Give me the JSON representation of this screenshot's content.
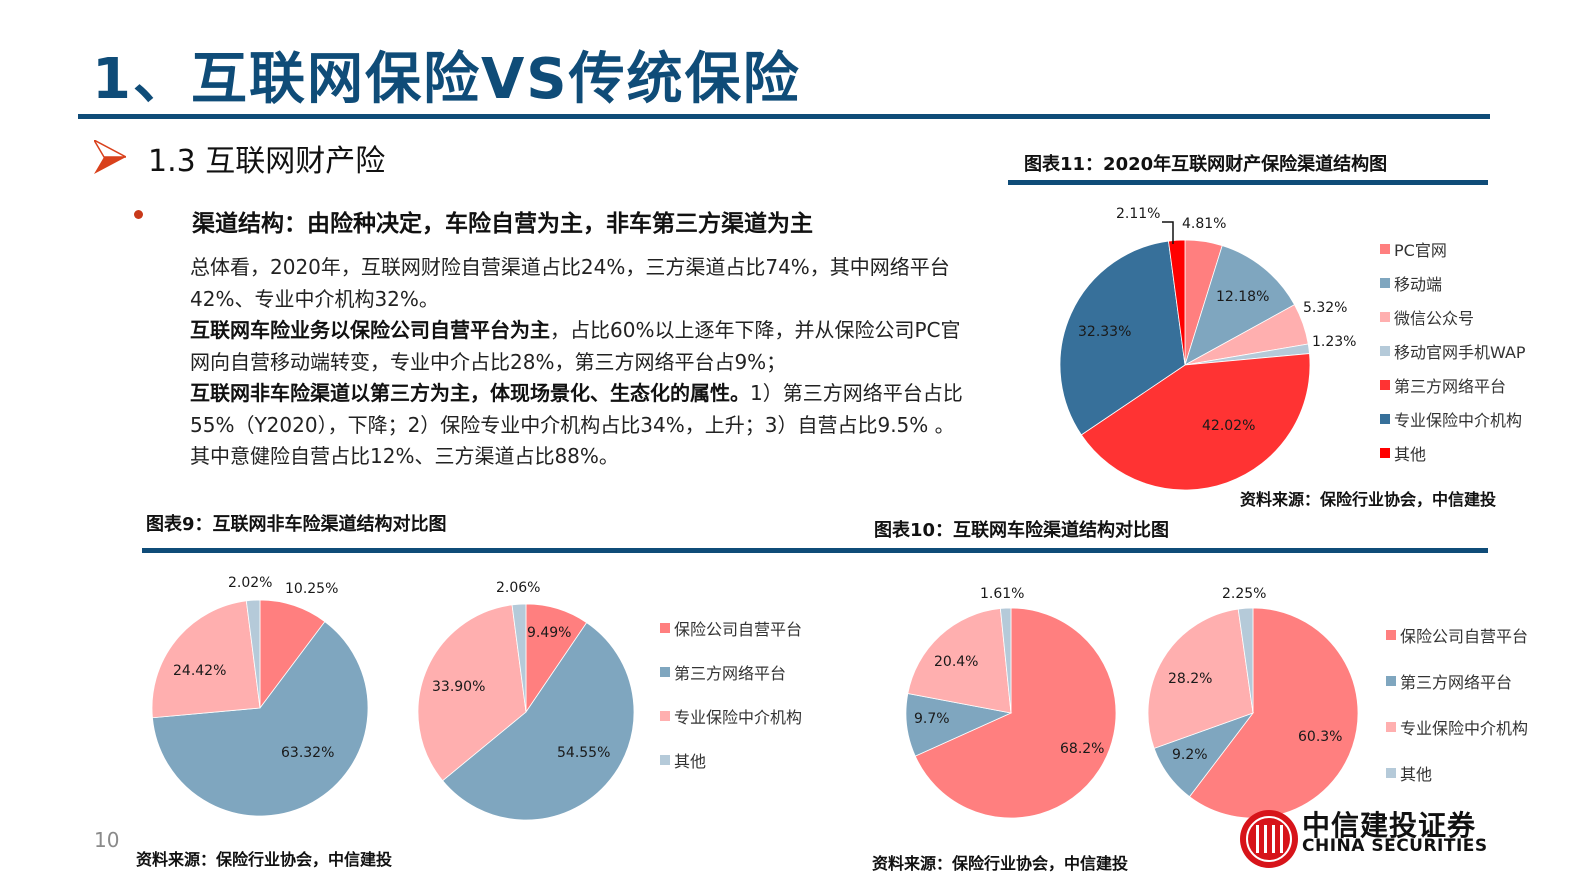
{
  "page": {
    "title": "1、互联网保险VS传统保险",
    "section": "1.3  互联网财产险",
    "page_number": "10"
  },
  "content": {
    "bullet_heading": "渠道结构：由险种决定，车险自营为主，非车第三方渠道为主",
    "paragraphs": [
      {
        "bold": "",
        "text": "总体看，2020年，互联网财险自营渠道占比24%，三方渠道占比74%，其中网络平台42%、专业中介机构32%。"
      },
      {
        "bold": "互联网车险业务以保险公司自营平台为主",
        "text": "，占比60%以上逐年下降，并从保险公司PC官网向自营移动端转变，专业中介占比28%，第三方网络平台占9%；"
      },
      {
        "bold": "互联网非车险渠道以第三方为主，体现场景化、生态化的属性。",
        "text": "1）第三方网络平台占比55%（Y2020），下降；2）保险专业中介机构占比34%，上升；3）自营占比9.5% 。其中意健险自营占比12%、三方渠道占比88%。"
      }
    ]
  },
  "figures": {
    "fig11": {
      "title": "图表11：2020年互联网财产保险渠道结构图",
      "source": "资料来源：保险行业协会，中信建投"
    },
    "fig9": {
      "title": "图表9：互联网非车险渠道结构对比图",
      "source": "资料来源：保险行业协会，中信建投"
    },
    "fig10": {
      "title": "图表10：互联网车险渠道结构对比图",
      "source": "资料来源：保险行业协会，中信建投"
    }
  },
  "logo": {
    "cn": "中信建投证券",
    "en": "CHINA SECURITIES"
  },
  "colors": {
    "brand_blue": "#0f4c78",
    "pc": "#ff7f7f",
    "mobile": "#7fa6bf",
    "wechat": "#ffafaf",
    "wap": "#b5cad9",
    "third_party": "#ff3333",
    "broker": "#37709a",
    "other_red": "#ff0000"
  },
  "chart_data": [
    {
      "id": "fig11",
      "type": "pie",
      "title": "图表11：2020年互联网财产保险渠道结构图",
      "categories": [
        "PC官网",
        "移动端",
        "微信公众号",
        "移动官网手机WAP",
        "第三方网络平台",
        "专业保险中介机构",
        "其他"
      ],
      "values": [
        4.81,
        12.18,
        5.32,
        1.23,
        42.02,
        32.33,
        2.11
      ],
      "labels": [
        "4.81%",
        "12.18%",
        "5.32%",
        "1.23%",
        "42.02%",
        "32.33%",
        "2.11%"
      ],
      "colors": [
        "#ff7f7f",
        "#7fa6bf",
        "#ffafaf",
        "#b5cad9",
        "#ff3333",
        "#37709a",
        "#ff0000"
      ],
      "legend_position": "right"
    },
    {
      "id": "fig9",
      "type": "pie",
      "title": "图表9：互联网非车险渠道结构对比图",
      "categories": [
        "保险公司自营平台",
        "第三方网络平台",
        "专业保险中介机构",
        "其他"
      ],
      "series": [
        {
          "name": "pie-1",
          "values": [
            10.25,
            63.32,
            24.42,
            2.02
          ],
          "labels": [
            "10.25%",
            "63.32%",
            "24.42%",
            "2.02%"
          ]
        },
        {
          "name": "pie-2",
          "values": [
            9.49,
            54.55,
            33.9,
            2.06
          ],
          "labels": [
            "9.49%",
            "54.55%",
            "33.90%",
            "2.06%"
          ]
        }
      ],
      "colors": [
        "#ff7f7f",
        "#7fa6bf",
        "#ffafaf",
        "#b5cad9"
      ],
      "legend_position": "right"
    },
    {
      "id": "fig10",
      "type": "pie",
      "title": "图表10：互联网车险渠道结构对比图",
      "categories": [
        "保险公司自营平台",
        "第三方网络平台",
        "专业保险中介机构",
        "其他"
      ],
      "series": [
        {
          "name": "pie-1",
          "values": [
            68.2,
            9.7,
            20.4,
            1.61
          ],
          "labels": [
            "68.2%",
            "9.7%",
            "20.4%",
            "1.61%"
          ]
        },
        {
          "name": "pie-2",
          "values": [
            60.3,
            9.2,
            28.2,
            2.25
          ],
          "labels": [
            "60.3%",
            "9.2%",
            "28.2%",
            "2.25%"
          ]
        }
      ],
      "colors": [
        "#ff7f7f",
        "#7fa6bf",
        "#ffafaf",
        "#b5cad9"
      ],
      "legend_position": "right"
    }
  ]
}
